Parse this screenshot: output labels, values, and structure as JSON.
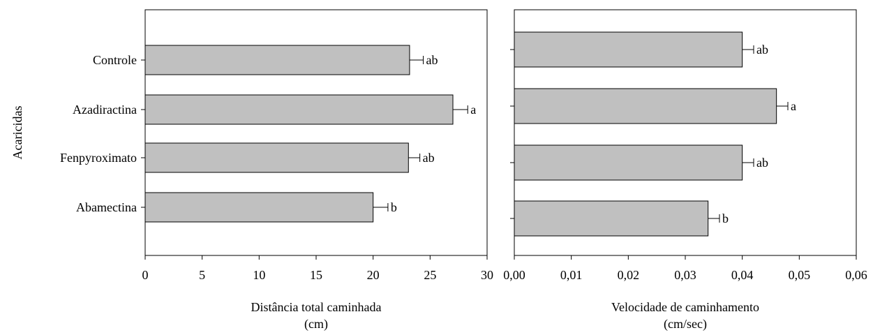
{
  "chart_data": [
    {
      "type": "bar",
      "orientation": "horizontal",
      "categories": [
        "Controle",
        "Azadiractina",
        "Fenpyroximato",
        "Abamectina"
      ],
      "values": [
        23.2,
        27.0,
        23.1,
        20.0
      ],
      "errors": [
        1.2,
        1.3,
        1.0,
        1.3
      ],
      "letters": [
        "ab",
        "a",
        "ab",
        "b"
      ],
      "ylabel": "Acaricidas",
      "xlabel_line1": "Distância total caminhada",
      "xlabel_line2": "(cm)",
      "xlim": [
        0,
        30
      ],
      "xticks": [
        "0",
        "5",
        "10",
        "15",
        "20",
        "25",
        "30"
      ],
      "bar_color": "#c0c0c0",
      "grid": false
    },
    {
      "type": "bar",
      "orientation": "horizontal",
      "categories": [
        "",
        "",
        "",
        ""
      ],
      "values": [
        0.04,
        0.046,
        0.04,
        0.034
      ],
      "errors": [
        0.002,
        0.002,
        0.002,
        0.002
      ],
      "letters": [
        "ab",
        "a",
        "ab",
        "b"
      ],
      "xlabel_line1": "Velocidade de caminhamento",
      "xlabel_line2": "(cm/sec)",
      "xlim": [
        0,
        0.06
      ],
      "xticks": [
        "0,00",
        "0,01",
        "0,02",
        "0,03",
        "0,04",
        "0,05",
        "0,06"
      ],
      "bar_color": "#c0c0c0",
      "grid": false
    }
  ]
}
